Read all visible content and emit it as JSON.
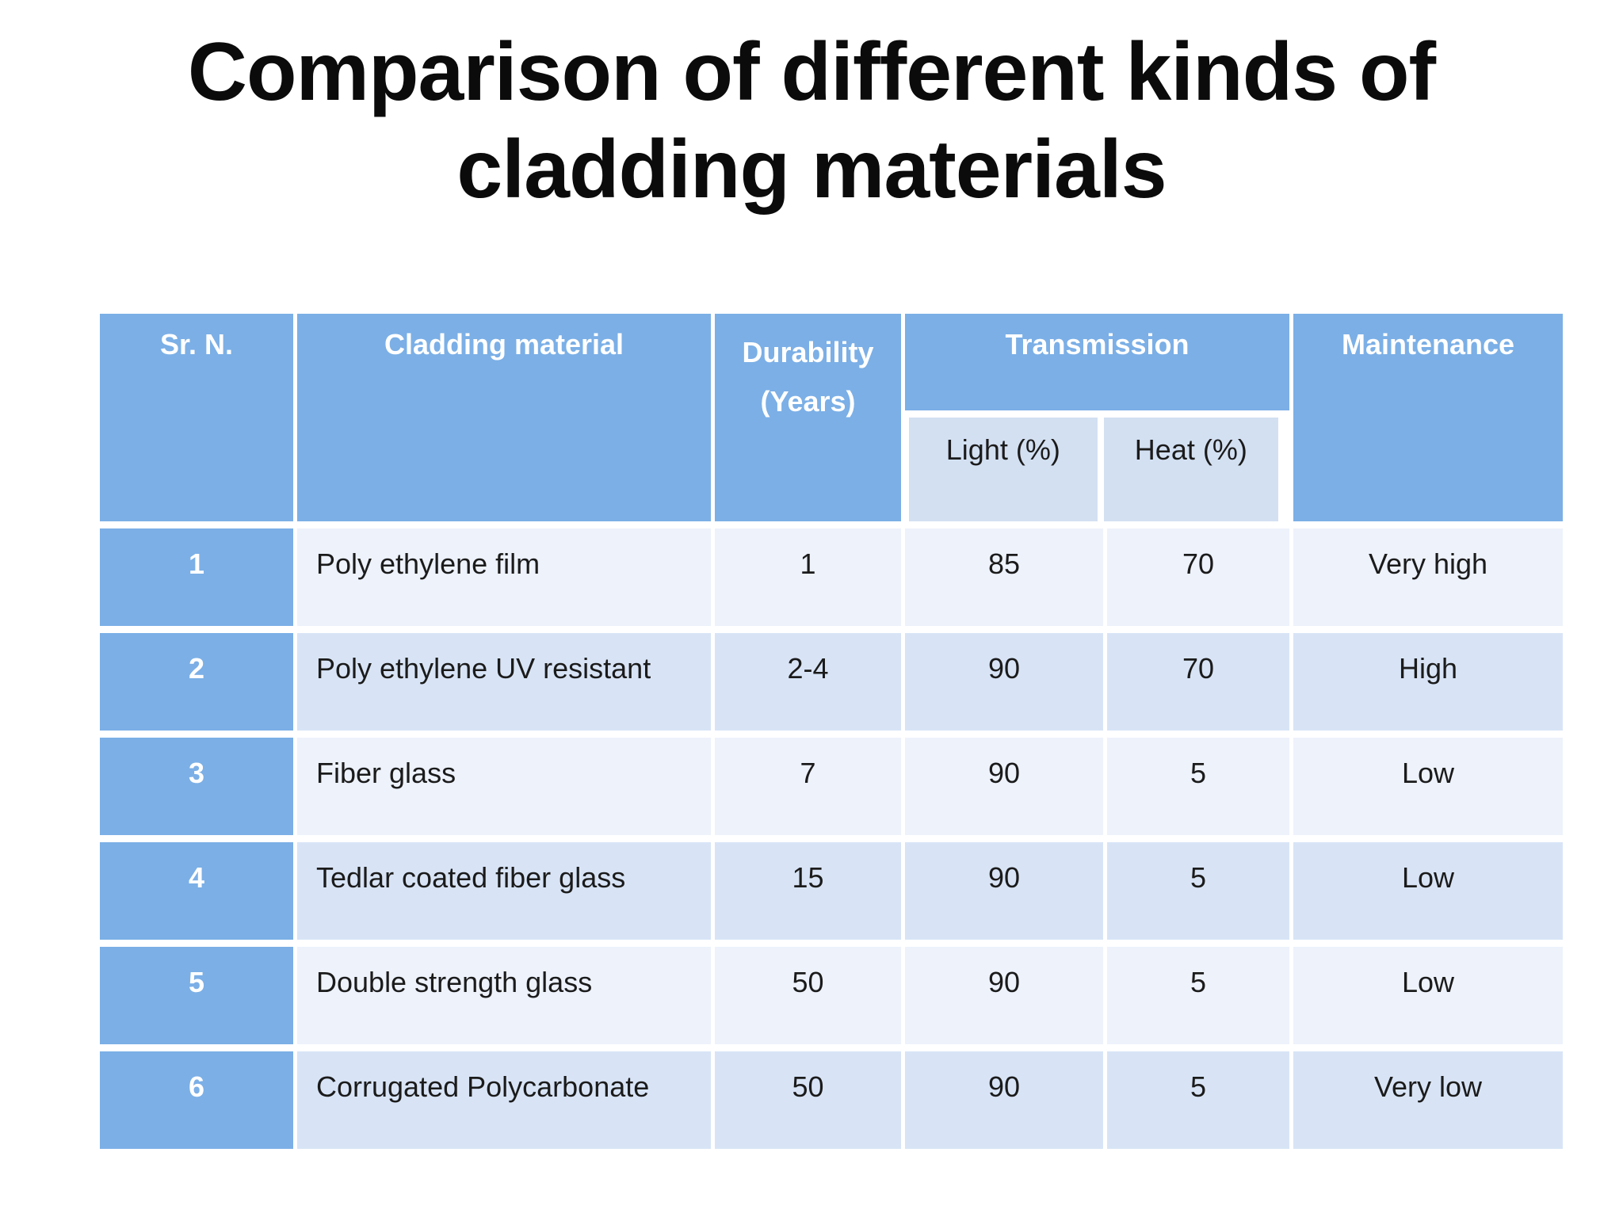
{
  "slide": {
    "title_line1": "Comparison of different kinds of",
    "title_line2": "cladding materials"
  },
  "table": {
    "header": {
      "sr": "Sr. N.",
      "cladding": "Cladding material",
      "durability_line1": "Durability",
      "durability_line2": "(Years)",
      "transmission": "Transmission",
      "light": "Light (%)",
      "heat": "Heat (%)",
      "maintenance": "Maintenance"
    },
    "rows": [
      {
        "sr": "1",
        "material": "Poly ethylene film",
        "durability": "1",
        "light": "85",
        "heat": "70",
        "maintenance": "Very high"
      },
      {
        "sr": "2",
        "material": "Poly ethylene UV resistant",
        "durability": "2-4",
        "light": "90",
        "heat": "70",
        "maintenance": "High"
      },
      {
        "sr": "3",
        "material": "Fiber glass",
        "durability": "7",
        "light": "90",
        "heat": "5",
        "maintenance": "Low"
      },
      {
        "sr": "4",
        "material": "Tedlar coated fiber glass",
        "durability": "15",
        "light": "90",
        "heat": "5",
        "maintenance": "Low"
      },
      {
        "sr": "5",
        "material": "Double strength glass",
        "durability": "50",
        "light": "90",
        "heat": "5",
        "maintenance": "Low"
      },
      {
        "sr": "6",
        "material": "Corrugated Polycarbonate",
        "durability": "50",
        "light": "90",
        "heat": "5",
        "maintenance": "Very low"
      }
    ]
  },
  "colors": {
    "header_blue": "#7bafe6",
    "row_light": "#edf2fb",
    "row_medium": "#d8e4f6",
    "subheader_bg": "#d3e0f2",
    "header_text": "#ffffff",
    "body_text": "#1b1b1b",
    "title_text": "#0b0b0b",
    "background": "#ffffff"
  }
}
